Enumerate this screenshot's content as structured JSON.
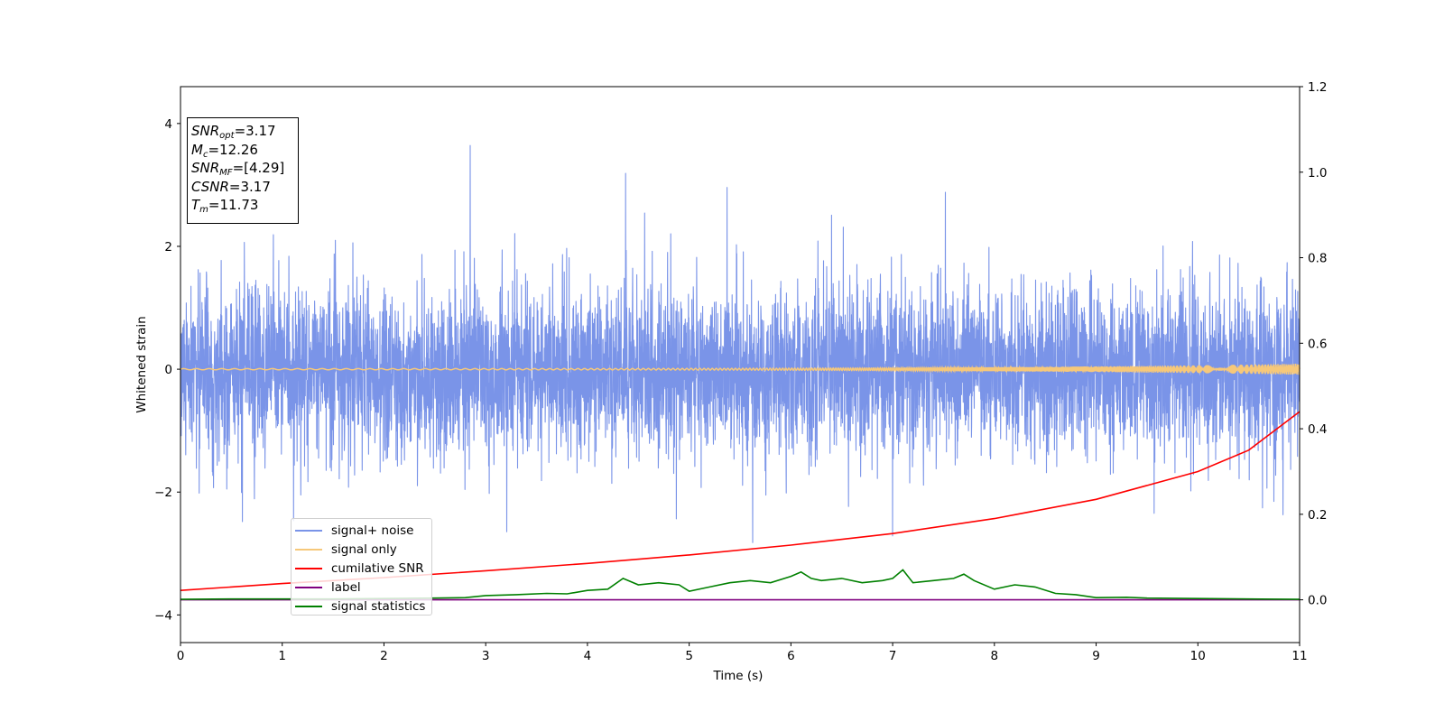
{
  "chart_data": {
    "type": "line",
    "xlabel": "Time (s)",
    "ylabel": "Whitened strain",
    "xlim": [
      0,
      11
    ],
    "ylim": [
      -4.45,
      4.6
    ],
    "y2lim": [
      -0.1,
      1.2
    ],
    "x_ticks": [
      "0",
      "1",
      "2",
      "3",
      "4",
      "5",
      "6",
      "7",
      "8",
      "9",
      "10",
      "11"
    ],
    "y_ticks": [
      "4",
      "2",
      "0",
      "−2",
      "−4"
    ],
    "y2_ticks": [
      "0.0",
      "0.2",
      "0.4",
      "0.6",
      "0.8",
      "1.0",
      "1.2"
    ],
    "legend_position": "lower-left",
    "series": [
      {
        "name": "signal+ noise",
        "axis": "left",
        "color": "#7a94e8",
        "kind": "noise",
        "std": 0.78,
        "min": -4.05,
        "max": 3.8
      },
      {
        "name": "signal only",
        "axis": "left",
        "color": "#f6c87a",
        "kind": "chirp",
        "amp_start": 0.01,
        "amp_end": 0.09
      },
      {
        "name": "cumilative SNR",
        "axis": "right",
        "color": "#ff0000",
        "x": [
          0,
          1,
          2,
          3,
          4,
          5,
          6,
          7,
          8,
          9,
          10,
          10.5,
          11
        ],
        "y": [
          0.022,
          0.038,
          0.052,
          0.068,
          0.085,
          0.105,
          0.128,
          0.155,
          0.19,
          0.235,
          0.3,
          0.35,
          0.44
        ]
      },
      {
        "name": "label",
        "axis": "right",
        "color": "#800080",
        "x": [
          0,
          11
        ],
        "y": [
          0,
          0
        ]
      },
      {
        "name": "signal statistics",
        "axis": "right",
        "color": "#008000",
        "x": [
          0,
          0.5,
          1,
          1.5,
          2,
          2.5,
          2.8,
          3,
          3.3,
          3.6,
          3.8,
          4,
          4.2,
          4.35,
          4.5,
          4.7,
          4.9,
          5,
          5.2,
          5.4,
          5.6,
          5.8,
          6,
          6.1,
          6.2,
          6.3,
          6.5,
          6.7,
          6.9,
          7,
          7.1,
          7.2,
          7.4,
          7.6,
          7.7,
          7.8,
          8,
          8.2,
          8.4,
          8.6,
          8.8,
          9,
          9.3,
          9.5,
          10,
          10.5,
          11
        ],
        "y": [
          0.001,
          0.002,
          0.002,
          0.002,
          0.003,
          0.004,
          0.005,
          0.01,
          0.012,
          0.015,
          0.014,
          0.022,
          0.025,
          0.05,
          0.035,
          0.04,
          0.035,
          0.02,
          0.03,
          0.04,
          0.045,
          0.04,
          0.055,
          0.065,
          0.05,
          0.045,
          0.05,
          0.04,
          0.045,
          0.05,
          0.07,
          0.04,
          0.045,
          0.05,
          0.06,
          0.045,
          0.025,
          0.035,
          0.03,
          0.015,
          0.012,
          0.005,
          0.006,
          0.004,
          0.003,
          0.002,
          0.001
        ]
      }
    ],
    "info_box": {
      "lines": [
        {
          "sym": "SNR",
          "sub": "opt",
          "val": "=3.17"
        },
        {
          "sym": "M",
          "sub": "c",
          "val": "=12.26"
        },
        {
          "sym": "SNR",
          "sub": "MF",
          "val": "=[4.29]"
        },
        {
          "sym": "CSNR",
          "sub": "",
          "val": "=3.17"
        },
        {
          "sym": "T",
          "sub": "m",
          "val": "=11.73"
        }
      ]
    },
    "grid": false
  }
}
